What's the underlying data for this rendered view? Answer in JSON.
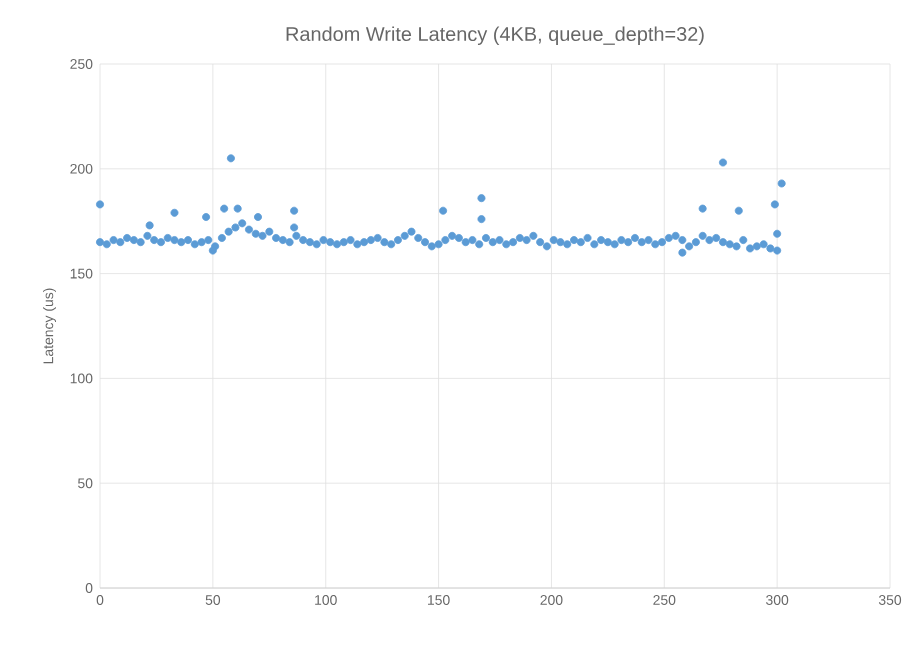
{
  "chart_data": {
    "type": "scatter",
    "title": "Random Write Latency (4KB, queue_depth=32)",
    "ylabel": "Latency (us)",
    "xlim": [
      0,
      350
    ],
    "xticks": [
      0,
      50,
      100,
      150,
      200,
      250,
      300,
      350
    ],
    "ylim": [
      0,
      250
    ],
    "yticks": [
      0,
      50,
      100,
      150,
      200,
      250
    ],
    "grid": true,
    "marker": "circle",
    "series": [
      {
        "color": "#5b9bd5",
        "x": [
          0,
          3,
          6,
          9,
          12,
          15,
          18,
          21,
          24,
          27,
          30,
          33,
          36,
          39,
          42,
          45,
          48,
          51,
          54,
          57,
          60,
          63,
          66,
          69,
          72,
          75,
          78,
          81,
          84,
          87,
          90,
          93,
          96,
          99,
          102,
          105,
          108,
          111,
          114,
          117,
          120,
          123,
          126,
          129,
          132,
          135,
          138,
          141,
          144,
          147,
          150,
          153,
          156,
          159,
          162,
          165,
          168,
          171,
          174,
          177,
          180,
          183,
          186,
          189,
          192,
          195,
          198,
          201,
          204,
          207,
          210,
          213,
          216,
          219,
          222,
          225,
          228,
          231,
          234,
          237,
          240,
          243,
          246,
          249,
          252,
          255,
          258,
          261,
          264,
          267,
          270,
          273,
          276,
          279,
          282,
          285,
          288,
          291,
          294,
          297,
          300,
          0,
          22,
          33,
          47,
          50,
          55,
          58,
          61,
          70,
          86,
          86,
          152,
          169,
          169,
          267,
          276,
          283,
          299,
          302,
          300,
          258
        ],
        "values": [
          165,
          164,
          166,
          165,
          167,
          166,
          165,
          168,
          166,
          165,
          167,
          166,
          165,
          166,
          164,
          165,
          166,
          163,
          167,
          170,
          172,
          174,
          171,
          169,
          168,
          170,
          167,
          166,
          165,
          168,
          166,
          165,
          164,
          166,
          165,
          164,
          165,
          166,
          164,
          165,
          166,
          167,
          165,
          164,
          166,
          168,
          170,
          167,
          165,
          163,
          164,
          166,
          168,
          167,
          165,
          166,
          164,
          167,
          165,
          166,
          164,
          165,
          167,
          166,
          168,
          165,
          163,
          166,
          165,
          164,
          166,
          165,
          167,
          164,
          166,
          165,
          164,
          166,
          165,
          167,
          165,
          166,
          164,
          165,
          167,
          168,
          166,
          163,
          165,
          168,
          166,
          167,
          165,
          164,
          163,
          166,
          162,
          163,
          164,
          162,
          161,
          183,
          173,
          179,
          177,
          161,
          181,
          205,
          181,
          177,
          180,
          172,
          180,
          186,
          176,
          181,
          203,
          180,
          183,
          193,
          169,
          160
        ]
      }
    ]
  }
}
